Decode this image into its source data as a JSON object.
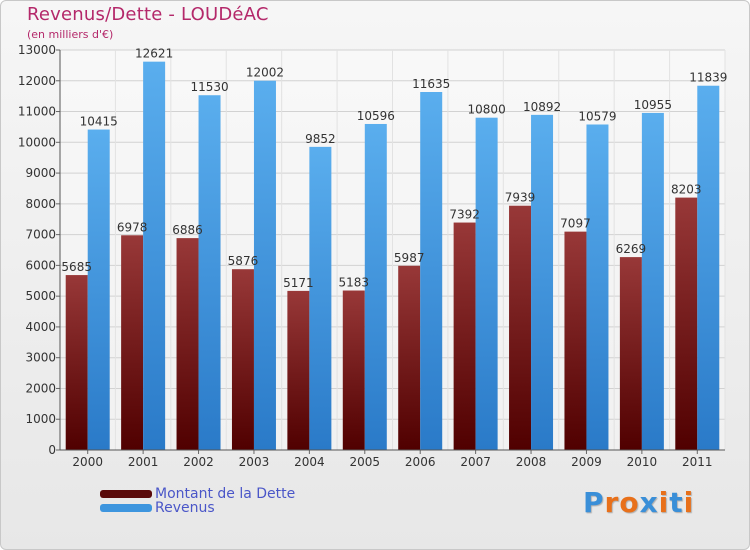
{
  "chart_data": {
    "type": "bar",
    "title": "Revenus/Dette - LOUDéAC",
    "subtitle": "(en milliers d'€)",
    "categories": [
      "2000",
      "2001",
      "2002",
      "2003",
      "2004",
      "2005",
      "2006",
      "2007",
      "2008",
      "2009",
      "2010",
      "2011"
    ],
    "series": [
      {
        "name": "Montant de la Dette",
        "color": "#7a1a1a",
        "values": [
          5685,
          6978,
          6886,
          5876,
          5171,
          5183,
          5987,
          7392,
          7939,
          7097,
          6269,
          8203
        ],
        "labels": [
          "5685",
          "6978",
          "6886",
          "5876",
          "5171",
          "5183",
          "5987",
          "7392",
          "7939",
          "7097",
          "6269",
          "8203"
        ]
      },
      {
        "name": "Revenus",
        "color": "#3d95de",
        "values": [
          10415,
          12621,
          11530,
          12002,
          9852,
          10596,
          11635,
          10800,
          10892,
          10579,
          10955,
          11839
        ],
        "labels": [
          "10415",
          "12621",
          "11530",
          "12002",
          "9852",
          "10596",
          "11635",
          "10800",
          "10892",
          "10579",
          "10955",
          "11839"
        ]
      }
    ],
    "ylim": [
      0,
      13000
    ],
    "yticks": [
      0,
      1000,
      2000,
      3000,
      4000,
      5000,
      6000,
      7000,
      8000,
      9000,
      10000,
      11000,
      12000,
      13000
    ],
    "ytick_labels": [
      "0",
      "1000",
      "2000",
      "3000",
      "4000",
      "5000",
      "6000",
      "7000",
      "8000",
      "9000",
      "10000",
      "11000",
      "12000",
      "13000"
    ],
    "grid": true,
    "legend_position": "bottom-left"
  },
  "legend": {
    "debt_label": "Montant de la Dette",
    "revenue_label": "Revenus",
    "debt_color": "#5a0a0a",
    "revenue_color": "#3d95de"
  },
  "logo": {
    "text": "Proxiti",
    "letters": [
      "P",
      "r",
      "o",
      "x",
      "i",
      "t",
      "i"
    ],
    "colors": [
      "#3a8fd8",
      "#e8701a",
      "#e8701a",
      "#3a8fd8",
      "#e8701a",
      "#3a8fd8",
      "#e8701a"
    ]
  }
}
